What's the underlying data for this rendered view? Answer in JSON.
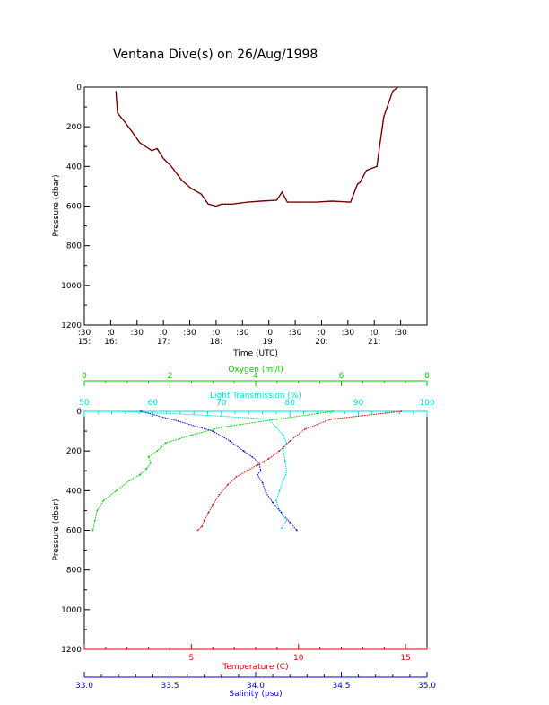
{
  "title": "Ventana Dive(s) on 26/Aug/1998",
  "chart_data": [
    {
      "type": "line",
      "name": "dive-track",
      "xlabel": "Time (UTC)",
      "ylabel": "Pressure (dbar)",
      "x_unit": "hours UTC",
      "xlim": [
        15.5,
        22.0
      ],
      "ylim": [
        1200,
        0
      ],
      "y_ticks": [
        "0",
        "200",
        "400",
        "600",
        "800",
        "1000",
        "1200"
      ],
      "x_tick_minutes": [
        ":30",
        ":0",
        ":30",
        ":0",
        ":30",
        ":0",
        ":30",
        ":0",
        ":30",
        ":0",
        ":30",
        ":0",
        ":30"
      ],
      "x_tick_hours": [
        "15:",
        "16:",
        "17:",
        "18:",
        "19:",
        "20:",
        "21:"
      ],
      "series": [
        {
          "color": "#000000",
          "x": [
            16.1,
            16.13,
            16.25,
            16.42,
            16.55,
            16.78,
            16.88,
            17.0,
            17.15,
            17.35,
            17.52,
            17.72,
            17.85,
            18.0,
            18.1,
            18.3,
            18.6,
            18.85,
            19.15,
            19.25,
            19.35,
            19.62,
            19.9,
            20.2,
            20.55,
            20.68,
            20.73,
            20.85,
            21.05,
            21.1,
            21.18,
            21.35,
            21.45
          ],
          "y": [
            20,
            130,
            170,
            230,
            280,
            320,
            310,
            360,
            400,
            470,
            510,
            540,
            590,
            600,
            590,
            590,
            580,
            575,
            570,
            530,
            580,
            580,
            580,
            575,
            580,
            490,
            480,
            420,
            400,
            300,
            150,
            20,
            0
          ]
        }
      ]
    },
    {
      "type": "scatter",
      "name": "profiles",
      "ylabel": "Pressure (dbar)",
      "ylim": [
        1200,
        0
      ],
      "y_ticks": [
        "0",
        "200",
        "400",
        "600",
        "800",
        "1000",
        "1200"
      ],
      "axes": {
        "oxygen": {
          "label": "Oxygen (ml/l)",
          "range": [
            0,
            8
          ],
          "ticks": [
            "0",
            "2",
            "4",
            "6",
            "8"
          ],
          "color": "#00cc00"
        },
        "light_transmission": {
          "label": "Light Transmission (%)",
          "range": [
            50,
            100
          ],
          "ticks": [
            "50",
            "60",
            "70",
            "80",
            "90",
            "100"
          ],
          "color": "#00dddd"
        },
        "temperature": {
          "label": "Temperature (C)",
          "range": [
            0,
            16
          ],
          "ticks": [
            "5",
            "10",
            "15"
          ],
          "color": "#dd0000"
        },
        "salinity": {
          "label": "Salinity (psu)",
          "range": [
            33.0,
            35.0
          ],
          "ticks": [
            "33.0",
            "33.5",
            "34.0",
            "34.5",
            "35.0"
          ],
          "color": "#0000cc"
        }
      },
      "series": [
        {
          "axis": "oxygen",
          "color": "#00cc00",
          "x": [
            5.8,
            4.5,
            3.2,
            2.5,
            1.9,
            1.7,
            1.5,
            1.55,
            1.45,
            1.3,
            1.05,
            0.75,
            0.45,
            0.3,
            0.25,
            0.2
          ],
          "y": [
            0,
            40,
            80,
            120,
            160,
            200,
            230,
            260,
            290,
            320,
            350,
            400,
            450,
            500,
            550,
            600
          ]
        },
        {
          "axis": "light_transmission",
          "color": "#00dddd",
          "x": [
            55,
            68,
            77,
            78,
            79,
            79.5,
            79,
            79.3,
            79.5,
            79.4,
            79,
            78.5,
            78,
            78.5,
            79.5,
            78.8
          ],
          "y": [
            0,
            20,
            40,
            80,
            120,
            160,
            200,
            250,
            300,
            320,
            350,
            400,
            450,
            500,
            550,
            590
          ]
        },
        {
          "axis": "temperature",
          "color": "#dd0000",
          "x": [
            14.8,
            11.5,
            10.3,
            9.6,
            9.1,
            8.6,
            8.1,
            7.6,
            7.1,
            6.7,
            6.3,
            6.0,
            5.8,
            5.6,
            5.5,
            5.3
          ],
          "y": [
            0,
            40,
            90,
            150,
            200,
            240,
            270,
            300,
            330,
            370,
            420,
            470,
            510,
            550,
            580,
            600
          ]
        },
        {
          "axis": "salinity",
          "color": "#0000cc",
          "x": [
            33.33,
            33.55,
            33.75,
            33.85,
            33.93,
            33.98,
            34.02,
            34.03,
            34.01,
            34.04,
            34.06,
            34.1,
            34.15,
            34.2,
            34.24
          ],
          "y": [
            0,
            50,
            100,
            150,
            200,
            230,
            260,
            300,
            320,
            360,
            410,
            460,
            510,
            560,
            600
          ]
        }
      ]
    }
  ]
}
